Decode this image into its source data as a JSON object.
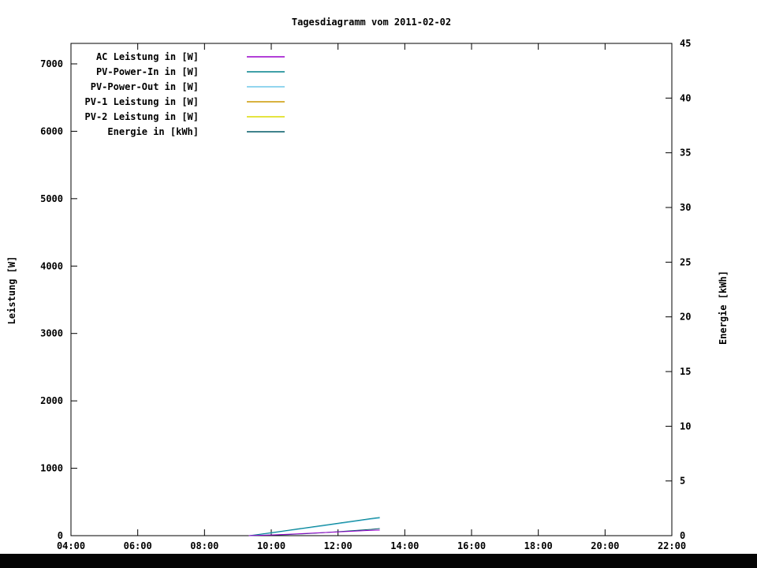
{
  "chart_data": {
    "type": "line",
    "title": "Tagesdiagramm vom 2011-02-02",
    "legend_position": "top-left",
    "grid": false,
    "x_axis": {
      "range": [
        4,
        22
      ],
      "tick_values": [
        4,
        6,
        8,
        10,
        12,
        14,
        16,
        18,
        20,
        22
      ],
      "tick_labels": [
        "04:00",
        "06:00",
        "08:00",
        "10:00",
        "12:00",
        "14:00",
        "16:00",
        "18:00",
        "20:00",
        "22:00"
      ]
    },
    "y_left": {
      "label": "Leistung [W]",
      "range": [
        0,
        7304
      ],
      "ticks": [
        0,
        1000,
        2000,
        3000,
        4000,
        5000,
        6000,
        7000
      ]
    },
    "y_right": {
      "label": "Energie [kWh]",
      "range": [
        0,
        45
      ],
      "ticks": [
        0,
        5,
        10,
        15,
        20,
        25,
        30,
        35,
        40,
        45
      ]
    },
    "series": [
      {
        "name": "AC Leistung in [W]",
        "color": "#9900cc",
        "axis": "left",
        "x": [
          9.33,
          9.5,
          10.0,
          10.5,
          11.0,
          11.5,
          12.0,
          12.5,
          13.0,
          13.25
        ],
        "y": [
          0,
          2,
          10,
          20,
          32,
          45,
          55,
          68,
          80,
          82
        ]
      },
      {
        "name": "PV-Power-In in [W]",
        "color": "#00808c",
        "axis": "left",
        "x": [
          9.33,
          9.5,
          10.0,
          10.5,
          11.0,
          11.5,
          12.0,
          12.5,
          13.0,
          13.25
        ],
        "y": [
          0,
          10,
          45,
          80,
          115,
          150,
          185,
          220,
          255,
          270
        ]
      },
      {
        "name": "PV-Power-Out in [W]",
        "color": "#6fc7e8",
        "axis": "left",
        "x": [
          9.33,
          9.5,
          10.0,
          10.5,
          11.0,
          11.5,
          12.0,
          12.5,
          13.0,
          13.25
        ],
        "y": [
          0,
          6,
          38,
          72,
          107,
          141,
          176,
          211,
          246,
          261
        ]
      },
      {
        "name": "PV-1 Leistung in [W]",
        "color": "#cc9900",
        "axis": "left",
        "x": [],
        "y": []
      },
      {
        "name": "PV-2 Leistung in [W]",
        "color": "#dcdc00",
        "axis": "left",
        "x": [],
        "y": []
      },
      {
        "name": "Energie in [kWh]",
        "color": "#005a66",
        "axis": "right",
        "x": [
          9.33,
          9.5,
          10.0,
          10.5,
          11.0,
          11.5,
          12.0,
          12.5,
          13.0,
          13.25
        ],
        "y": [
          0,
          0.01,
          0.05,
          0.1,
          0.17,
          0.26,
          0.36,
          0.47,
          0.58,
          0.65
        ]
      }
    ]
  }
}
